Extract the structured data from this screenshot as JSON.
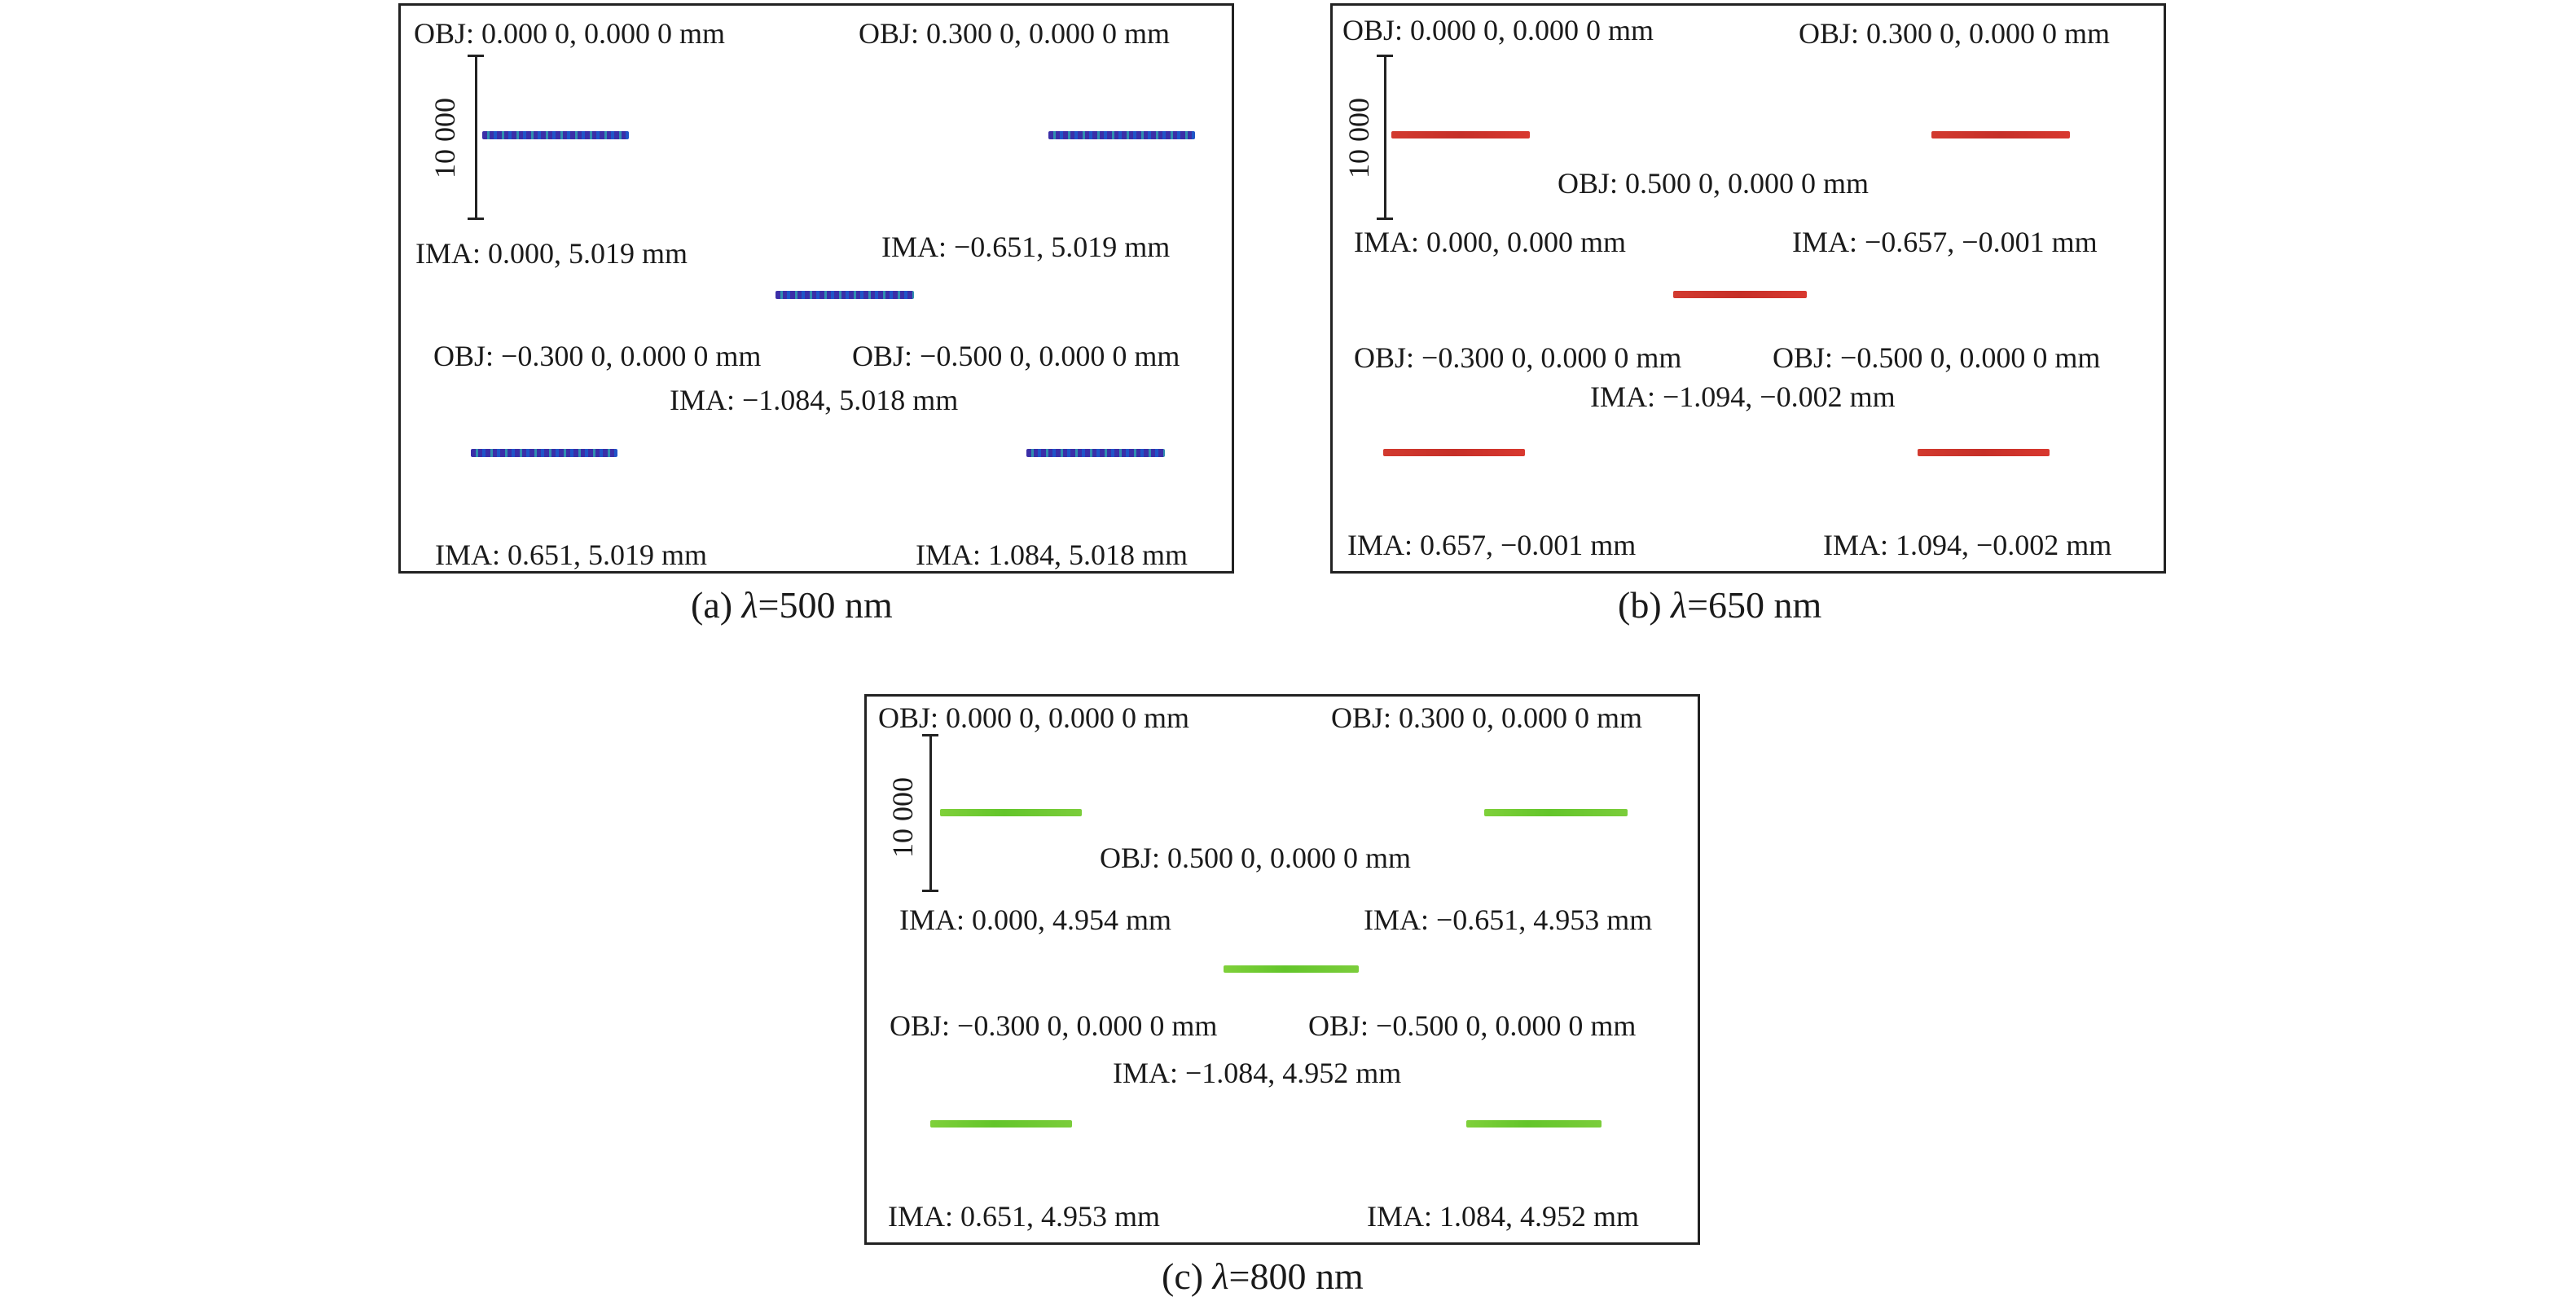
{
  "scale_label": "10 000",
  "colors": {
    "a": "#3b2fa8",
    "b": "#d23a2f",
    "c": "#6cc832"
  },
  "panels": {
    "a": {
      "caption_prefix": "(a) ",
      "caption_lambda": "λ",
      "caption_value": "=500 nm",
      "obj_0_0": "OBJ: 0.000 0, 0.000 0 mm",
      "ima_0_0": "IMA: 0.000, 5.019 mm",
      "obj_p03": "OBJ: 0.300 0, 0.000 0 mm",
      "ima_p03": "IMA: −0.651, 5.019 mm",
      "obj_m03": "OBJ: −0.300 0, 0.000 0 mm",
      "ima_m03": "IMA: 0.651, 5.019 mm",
      "obj_m05": "OBJ: −0.500 0, 0.000 0 mm",
      "ima_m05": "IMA: 1.084, 5.018 mm",
      "ima_p05": "IMA: −1.084, 5.018 mm"
    },
    "b": {
      "caption_prefix": "(b) ",
      "caption_lambda": "λ",
      "caption_value": "=650 nm",
      "obj_0_0": "OBJ: 0.000 0, 0.000 0 mm",
      "ima_0_0": "IMA: 0.000, 0.000 mm",
      "obj_p03": "OBJ: 0.300 0, 0.000 0 mm",
      "ima_p03": "IMA: −0.657, −0.001 mm",
      "obj_p05": "OBJ: 0.500 0, 0.000 0 mm",
      "ima_p05": "IMA: −1.094, −0.002 mm",
      "obj_m03": "OBJ: −0.300 0, 0.000 0 mm",
      "ima_m03": "IMA: 0.657, −0.001 mm",
      "obj_m05": "OBJ: −0.500 0, 0.000 0 mm",
      "ima_m05": "IMA: 1.094, −0.002 mm"
    },
    "c": {
      "caption_prefix": "(c) ",
      "caption_lambda": "λ",
      "caption_value": "=800 nm",
      "obj_0_0": "OBJ: 0.000 0, 0.000 0 mm",
      "ima_0_0": "IMA: 0.000, 4.954 mm",
      "obj_p03": "OBJ: 0.300 0, 0.000 0 mm",
      "ima_p03": "IMA: −0.651, 4.953 mm",
      "obj_p05": "OBJ: 0.500 0, 0.000 0 mm",
      "ima_p05": "IMA: −1.084, 4.952 mm",
      "obj_m03": "OBJ: −0.300 0, 0.000 0 mm",
      "ima_m03": "IMA: 0.651, 4.953 mm",
      "obj_m05": "OBJ: −0.500 0, 0.000 0 mm",
      "ima_m05": "IMA: 1.084, 4.952 mm"
    }
  }
}
